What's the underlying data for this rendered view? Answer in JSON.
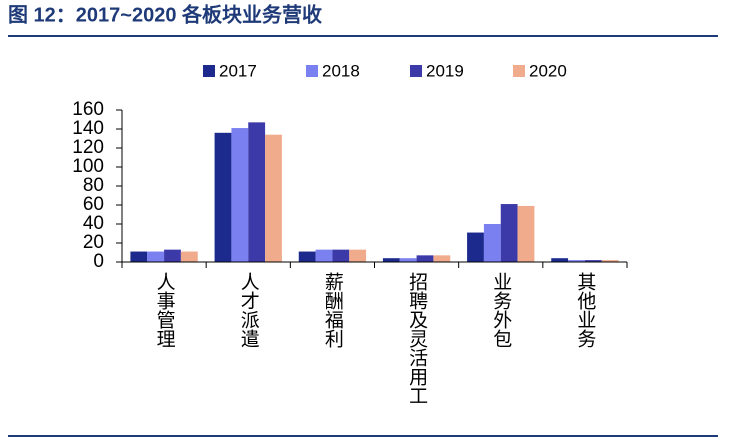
{
  "chart_data": {
    "type": "bar",
    "title": "图 12：2017~2020 各板块业务营收",
    "categories": [
      "人事管理",
      "人才派遣",
      "薪酬福利",
      "招聘及灵活用工",
      "业务外包",
      "其他业务"
    ],
    "series": [
      {
        "name": "2017",
        "color": "#1c2a8e",
        "values": [
          11,
          136,
          11,
          4,
          31,
          4
        ]
      },
      {
        "name": "2018",
        "color": "#7b80f0",
        "values": [
          11,
          141,
          13,
          4,
          40,
          2
        ]
      },
      {
        "name": "2019",
        "color": "#3c3aa8",
        "values": [
          13,
          147,
          13,
          7,
          61,
          2
        ]
      },
      {
        "name": "2020",
        "color": "#f0aa8c",
        "values": [
          11,
          134,
          13,
          7,
          59,
          2
        ]
      }
    ],
    "ylim": [
      0,
      160
    ],
    "yticks": [
      0,
      20,
      40,
      60,
      80,
      100,
      120,
      140,
      160
    ]
  }
}
